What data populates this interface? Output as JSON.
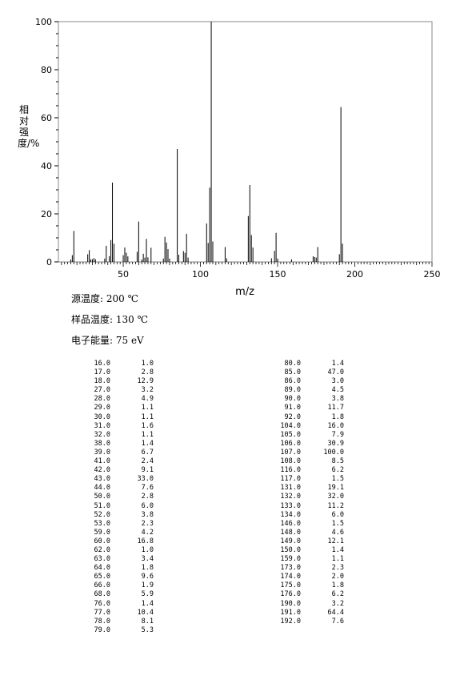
{
  "chart_data": {
    "type": "bar",
    "xlabel": "m/z",
    "ylabel": "相对强度/%",
    "xlim": [
      8,
      250
    ],
    "ylim": [
      0,
      100
    ],
    "xticks": [
      50,
      100,
      150,
      200,
      250
    ],
    "yticks": [
      0,
      20,
      40,
      60,
      80,
      100
    ],
    "grid": false,
    "peaks": [
      {
        "mz": "16.0",
        "ab": "1.0"
      },
      {
        "mz": "17.0",
        "ab": "2.8"
      },
      {
        "mz": "18.0",
        "ab": "12.9"
      },
      {
        "mz": "27.0",
        "ab": "3.2"
      },
      {
        "mz": "28.0",
        "ab": "4.9"
      },
      {
        "mz": "29.0",
        "ab": "1.1"
      },
      {
        "mz": "30.0",
        "ab": "1.1"
      },
      {
        "mz": "31.0",
        "ab": "1.6"
      },
      {
        "mz": "32.0",
        "ab": "1.1"
      },
      {
        "mz": "38.0",
        "ab": "1.4"
      },
      {
        "mz": "39.0",
        "ab": "6.7"
      },
      {
        "mz": "41.0",
        "ab": "2.4"
      },
      {
        "mz": "42.0",
        "ab": "9.1"
      },
      {
        "mz": "43.0",
        "ab": "33.0"
      },
      {
        "mz": "44.0",
        "ab": "7.6"
      },
      {
        "mz": "50.0",
        "ab": "2.8"
      },
      {
        "mz": "51.0",
        "ab": "6.0"
      },
      {
        "mz": "52.0",
        "ab": "3.8"
      },
      {
        "mz": "53.0",
        "ab": "2.3"
      },
      {
        "mz": "59.0",
        "ab": "4.2"
      },
      {
        "mz": "60.0",
        "ab": "16.8"
      },
      {
        "mz": "62.0",
        "ab": "1.0"
      },
      {
        "mz": "63.0",
        "ab": "3.4"
      },
      {
        "mz": "64.0",
        "ab": "1.8"
      },
      {
        "mz": "65.0",
        "ab": "9.6"
      },
      {
        "mz": "66.0",
        "ab": "1.9"
      },
      {
        "mz": "68.0",
        "ab": "5.9"
      },
      {
        "mz": "76.0",
        "ab": "1.4"
      },
      {
        "mz": "77.0",
        "ab": "10.4"
      },
      {
        "mz": "78.0",
        "ab": "8.1"
      },
      {
        "mz": "79.0",
        "ab": "5.3"
      },
      {
        "mz": "80.0",
        "ab": "1.4"
      },
      {
        "mz": "85.0",
        "ab": "47.0"
      },
      {
        "mz": "86.0",
        "ab": "3.0"
      },
      {
        "mz": "89.0",
        "ab": "4.5"
      },
      {
        "mz": "90.0",
        "ab": "3.8"
      },
      {
        "mz": "91.0",
        "ab": "11.7"
      },
      {
        "mz": "92.0",
        "ab": "1.8"
      },
      {
        "mz": "104.0",
        "ab": "16.0"
      },
      {
        "mz": "105.0",
        "ab": "7.9"
      },
      {
        "mz": "106.0",
        "ab": "30.9"
      },
      {
        "mz": "107.0",
        "ab": "100.0"
      },
      {
        "mz": "108.0",
        "ab": "8.5"
      },
      {
        "mz": "116.0",
        "ab": "6.2"
      },
      {
        "mz": "117.0",
        "ab": "1.5"
      },
      {
        "mz": "131.0",
        "ab": "19.1"
      },
      {
        "mz": "132.0",
        "ab": "32.0"
      },
      {
        "mz": "133.0",
        "ab": "11.2"
      },
      {
        "mz": "134.0",
        "ab": "6.0"
      },
      {
        "mz": "146.0",
        "ab": "1.5"
      },
      {
        "mz": "148.0",
        "ab": "4.6"
      },
      {
        "mz": "149.0",
        "ab": "12.1"
      },
      {
        "mz": "150.0",
        "ab": "1.4"
      },
      {
        "mz": "159.0",
        "ab": "1.1"
      },
      {
        "mz": "173.0",
        "ab": "2.3"
      },
      {
        "mz": "174.0",
        "ab": "2.0"
      },
      {
        "mz": "175.0",
        "ab": "1.8"
      },
      {
        "mz": "176.0",
        "ab": "6.2"
      },
      {
        "mz": "190.0",
        "ab": "3.2"
      },
      {
        "mz": "191.0",
        "ab": "64.4"
      },
      {
        "mz": "192.0",
        "ab": "7.6"
      }
    ]
  },
  "conditions": {
    "source_temp": "源温度: 200 ℃",
    "sample_temp": "样品温度: 130 ℃",
    "electron_energy": "电子能量: 75 eV"
  }
}
